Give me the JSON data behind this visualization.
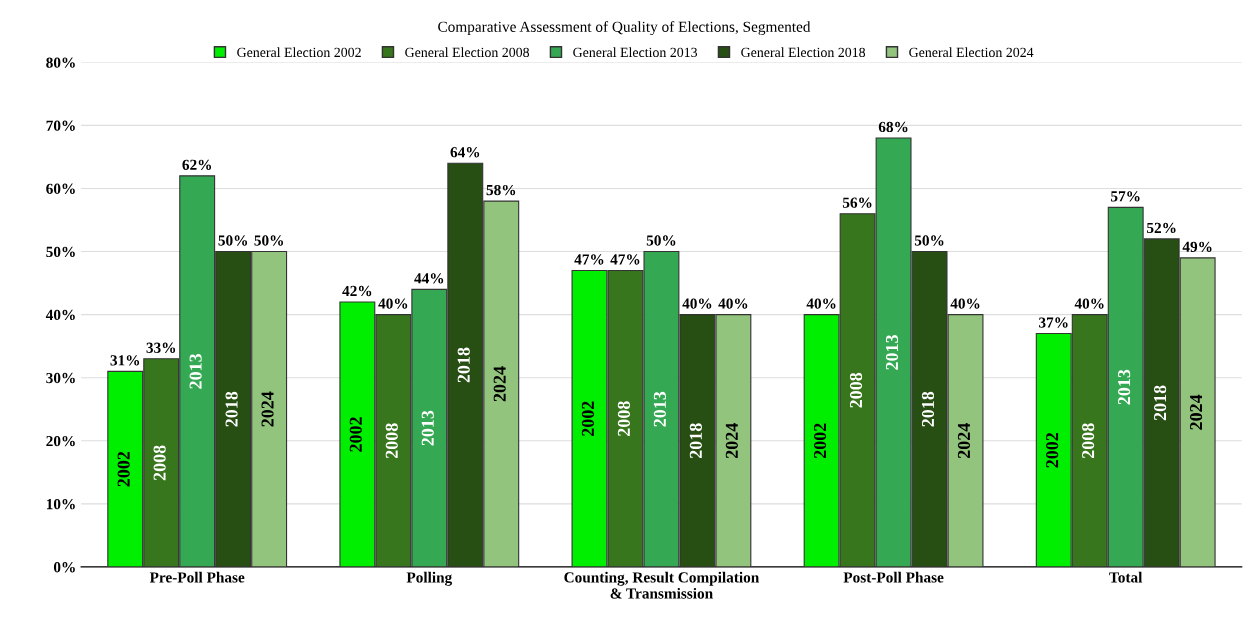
{
  "chart_data": {
    "type": "bar",
    "title": "Comparative Assessment of Quality of Elections, Segmented",
    "categories": [
      "Pre-Poll Phase",
      "Polling",
      "Counting, Result Compilation\n& Transmission",
      "Post-Poll Phase",
      "Total"
    ],
    "series": [
      {
        "name": "General Election 2002",
        "color": "#00ee00",
        "values": [
          31,
          42,
          47,
          40,
          37
        ],
        "value_labels": [
          "31%",
          "42%",
          "47%",
          "40%",
          "37%"
        ]
      },
      {
        "name": "General Election 2008",
        "color": "#38761d",
        "values": [
          33,
          40,
          47,
          56,
          40
        ],
        "value_labels": [
          "33%",
          "40%",
          "47%",
          "56%",
          "40%"
        ]
      },
      {
        "name": "General Election 2013",
        "color": "#34a853",
        "values": [
          62,
          44,
          50,
          68,
          57
        ],
        "value_labels": [
          "62%",
          "44%",
          "50%",
          "68%",
          "57%"
        ]
      },
      {
        "name": "General Election 2018",
        "color": "#274e13",
        "values": [
          50,
          64,
          40,
          50,
          52
        ],
        "value_labels": [
          "50%",
          "64%",
          "40%",
          "50%",
          "52%"
        ]
      },
      {
        "name": "General Election 2024",
        "color": "#93c47d",
        "values": [
          50,
          58,
          40,
          40,
          49
        ],
        "value_labels": [
          "50%",
          "58%",
          "40%",
          "40%",
          "49%"
        ]
      }
    ],
    "annotations": [
      "2002",
      "2008",
      "2013",
      "2018",
      "2024",
      "2002",
      "2008",
      "2013",
      "2018",
      "2024",
      "2002",
      "2008",
      "2013",
      "2018",
      "2024",
      "2002",
      "2008",
      "2013",
      "2018",
      "2024",
      "2002",
      "2008",
      "2013",
      "2018",
      "2024"
    ],
    "ylim": [
      0,
      80
    ],
    "yticks": [
      {
        "value": 0,
        "label": "0%"
      },
      {
        "value": 10,
        "label": "10%"
      },
      {
        "value": 20,
        "label": "20%"
      },
      {
        "value": 30,
        "label": "30%"
      },
      {
        "value": 40,
        "label": "40%"
      },
      {
        "value": 50,
        "label": "50%"
      },
      {
        "value": 60,
        "label": "60%"
      },
      {
        "value": 70,
        "label": "70%"
      },
      {
        "value": 80,
        "label": "80%"
      }
    ],
    "grid": "y",
    "legend": "top"
  }
}
